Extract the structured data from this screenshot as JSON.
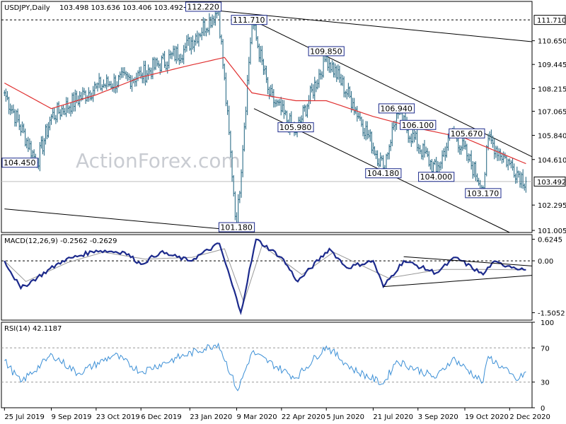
{
  "chart_data": {
    "type": "line",
    "instrument": "USDJPY,Daily",
    "ohlc_header": "103.498 103.636 103.406 103.492",
    "watermark": "ActionForex.com",
    "x_tick_labels": [
      "25 Jul 2019",
      "9 Sep 2019",
      "23 Oct 2019",
      "6 Dec 2019",
      "23 Jan 2020",
      "9 Mar 2020",
      "22 Apr 2020",
      "5 Jun 2020",
      "21 Jul 2020",
      "3 Sep 2020",
      "19 Oct 2020",
      "2 Dec 2020"
    ],
    "price_panel": {
      "y_tick_labels": [
        "111.710",
        "110.650",
        "109.445",
        "108.215",
        "107.065",
        "105.840",
        "104.610",
        "103.492",
        "102.295",
        "101.005"
      ],
      "ylim": [
        100.9,
        112.65
      ],
      "last_price": 103.492,
      "reference_level": 111.71,
      "close_series_keypoints": [
        {
          "x": "2019-07-25",
          "y": 108.0
        },
        {
          "x": "2019-08-26",
          "y": 104.45
        },
        {
          "x": "2019-09-09",
          "y": 106.8
        },
        {
          "x": "2019-10-23",
          "y": 108.3
        },
        {
          "x": "2019-12-06",
          "y": 108.9
        },
        {
          "x": "2020-01-17",
          "y": 110.2
        },
        {
          "x": "2020-02-20",
          "y": 112.22
        },
        {
          "x": "2020-03-09",
          "y": 101.18
        },
        {
          "x": "2020-03-24",
          "y": 111.71
        },
        {
          "x": "2020-04-10",
          "y": 107.9
        },
        {
          "x": "2020-05-06",
          "y": 105.98
        },
        {
          "x": "2020-06-05",
          "y": 109.85
        },
        {
          "x": "2020-07-01",
          "y": 107.5
        },
        {
          "x": "2020-07-31",
          "y": 104.18
        },
        {
          "x": "2020-08-13",
          "y": 106.94
        },
        {
          "x": "2020-09-21",
          "y": 104.0
        },
        {
          "x": "2020-10-07",
          "y": 106.1
        },
        {
          "x": "2020-10-21",
          "y": 104.8
        },
        {
          "x": "2020-11-06",
          "y": 103.17
        },
        {
          "x": "2020-11-11",
          "y": 105.67
        },
        {
          "x": "2020-12-02",
          "y": 104.4
        },
        {
          "x": "2020-12-18",
          "y": 103.492
        }
      ],
      "moving_average_keypoints": [
        {
          "x": "2019-07-25",
          "y": 108.5
        },
        {
          "x": "2019-09-09",
          "y": 107.2
        },
        {
          "x": "2019-10-23",
          "y": 107.9
        },
        {
          "x": "2019-12-06",
          "y": 108.8
        },
        {
          "x": "2020-01-23",
          "y": 109.4
        },
        {
          "x": "2020-02-26",
          "y": 109.8
        },
        {
          "x": "2020-03-24",
          "y": 108.0
        },
        {
          "x": "2020-05-06",
          "y": 107.6
        },
        {
          "x": "2020-06-05",
          "y": 107.6
        },
        {
          "x": "2020-07-21",
          "y": 106.8
        },
        {
          "x": "2020-09-03",
          "y": 106.2
        },
        {
          "x": "2020-10-19",
          "y": 105.7
        },
        {
          "x": "2020-12-18",
          "y": 104.4
        }
      ],
      "trendlines": [
        {
          "from": {
            "x": "2020-01-17",
            "y": 112.35
          },
          "to": {
            "x": "2020-12-24",
            "y": 110.6
          }
        },
        {
          "from": {
            "x": "2020-03-24",
            "y": 111.71
          },
          "to": {
            "x": "2020-12-24",
            "y": 104.75
          }
        },
        {
          "from": {
            "x": "2020-03-26",
            "y": 107.2
          },
          "to": {
            "x": "2020-12-02",
            "y": 100.9
          }
        },
        {
          "from": {
            "x": "2019-07-25",
            "y": 102.1
          },
          "to": {
            "x": "2020-03-22",
            "y": 100.95
          }
        }
      ],
      "annotations": [
        {
          "text": "112.220",
          "x": "2020-02-20",
          "y": 112.22
        },
        {
          "text": "111.710",
          "x": "2020-03-24",
          "y": 111.71
        },
        {
          "text": "109.850",
          "x": "2020-06-05",
          "y": 109.85
        },
        {
          "text": "106.940",
          "x": "2020-08-13",
          "y": 106.94
        },
        {
          "text": "106.100",
          "x": "2020-09-03",
          "y": 106.1
        },
        {
          "text": "105.670",
          "x": "2020-10-21",
          "y": 105.67
        },
        {
          "text": "105.980",
          "x": "2020-05-06",
          "y": 105.98
        },
        {
          "text": "104.180",
          "x": "2020-07-31",
          "y": 104.18
        },
        {
          "text": "104.000",
          "x": "2020-09-21",
          "y": 104.0
        },
        {
          "text": "103.170",
          "x": "2020-11-06",
          "y": 103.17
        },
        {
          "text": "104.450",
          "x": "2019-08-26",
          "y": 104.45
        },
        {
          "text": "101.180",
          "x": "2020-03-09",
          "y": 101.18
        }
      ]
    },
    "macd_panel": {
      "title": "MACD(12,26,9) -0.2562 -0.2629",
      "y_tick_labels": [
        "0.6245",
        "0.00",
        "-1.5052"
      ],
      "ylim": [
        -1.72,
        0.76
      ],
      "keypoints": [
        {
          "x": "2019-07-25",
          "y": 0.0
        },
        {
          "x": "2019-08-10",
          "y": -0.8
        },
        {
          "x": "2019-09-20",
          "y": 0.0
        },
        {
          "x": "2019-10-23",
          "y": 0.3
        },
        {
          "x": "2019-11-20",
          "y": 0.25
        },
        {
          "x": "2019-12-06",
          "y": -0.1
        },
        {
          "x": "2019-12-25",
          "y": 0.25
        },
        {
          "x": "2020-01-23",
          "y": 0.0
        },
        {
          "x": "2020-02-21",
          "y": 0.5
        },
        {
          "x": "2020-03-13",
          "y": -1.5
        },
        {
          "x": "2020-03-28",
          "y": 0.62
        },
        {
          "x": "2020-04-22",
          "y": 0.1
        },
        {
          "x": "2020-05-08",
          "y": -0.6
        },
        {
          "x": "2020-06-08",
          "y": 0.35
        },
        {
          "x": "2020-06-25",
          "y": -0.2
        },
        {
          "x": "2020-07-21",
          "y": 0.0
        },
        {
          "x": "2020-07-31",
          "y": -0.75
        },
        {
          "x": "2020-08-20",
          "y": 0.0
        },
        {
          "x": "2020-09-21",
          "y": -0.35
        },
        {
          "x": "2020-10-10",
          "y": 0.1
        },
        {
          "x": "2020-11-06",
          "y": -0.4
        },
        {
          "x": "2020-11-15",
          "y": -0.05
        },
        {
          "x": "2020-12-02",
          "y": -0.15
        },
        {
          "x": "2020-12-18",
          "y": -0.26
        }
      ],
      "signal_keypoints": [
        {
          "x": "2019-07-25",
          "y": 0.0
        },
        {
          "x": "2019-08-15",
          "y": -0.6
        },
        {
          "x": "2019-09-25",
          "y": -0.05
        },
        {
          "x": "2019-10-30",
          "y": 0.25
        },
        {
          "x": "2019-12-10",
          "y": 0.05
        },
        {
          "x": "2020-01-25",
          "y": 0.1
        },
        {
          "x": "2020-02-26",
          "y": 0.35
        },
        {
          "x": "2020-03-16",
          "y": -1.2
        },
        {
          "x": "2020-04-03",
          "y": 0.45
        },
        {
          "x": "2020-05-12",
          "y": -0.4
        },
        {
          "x": "2020-06-12",
          "y": 0.25
        },
        {
          "x": "2020-08-05",
          "y": -0.5
        },
        {
          "x": "2020-09-25",
          "y": -0.25
        },
        {
          "x": "2020-11-10",
          "y": -0.25
        },
        {
          "x": "2020-12-18",
          "y": -0.26
        }
      ],
      "trendlines": [
        {
          "from": {
            "x": "2020-07-31",
            "y": -0.75
          },
          "to": {
            "x": "2020-12-24",
            "y": -0.42
          }
        },
        {
          "from": {
            "x": "2020-08-20",
            "y": 0.12
          },
          "to": {
            "x": "2020-12-24",
            "y": -0.15
          }
        }
      ]
    },
    "rsi_panel": {
      "title": "RSI(14) 42.1187",
      "y_tick_labels": [
        "100",
        "70",
        "30",
        "0"
      ],
      "ylim": [
        0,
        100
      ],
      "levels": [
        70,
        30
      ],
      "keypoints": [
        {
          "x": "2019-07-25",
          "y": 55
        },
        {
          "x": "2019-08-10",
          "y": 30
        },
        {
          "x": "2019-09-10",
          "y": 62
        },
        {
          "x": "2019-10-05",
          "y": 40
        },
        {
          "x": "2019-11-10",
          "y": 62
        },
        {
          "x": "2019-12-06",
          "y": 42
        },
        {
          "x": "2020-01-10",
          "y": 58
        },
        {
          "x": "2020-02-20",
          "y": 75
        },
        {
          "x": "2020-03-10",
          "y": 20
        },
        {
          "x": "2020-03-24",
          "y": 65
        },
        {
          "x": "2020-05-06",
          "y": 35
        },
        {
          "x": "2020-06-05",
          "y": 72
        },
        {
          "x": "2020-07-01",
          "y": 45
        },
        {
          "x": "2020-07-31",
          "y": 28
        },
        {
          "x": "2020-08-13",
          "y": 55
        },
        {
          "x": "2020-09-21",
          "y": 35
        },
        {
          "x": "2020-10-07",
          "y": 58
        },
        {
          "x": "2020-11-06",
          "y": 30
        },
        {
          "x": "2020-11-11",
          "y": 60
        },
        {
          "x": "2020-12-02",
          "y": 40
        },
        {
          "x": "2020-12-10",
          "y": 32
        },
        {
          "x": "2020-12-18",
          "y": 42.1187
        }
      ]
    },
    "colors": {
      "price": "#2e6e88",
      "ma": "#e03030",
      "macd": "#1c2a8c",
      "signal": "#999999",
      "rsi": "#3b8fd6",
      "grid": "#d8d8d8",
      "frame": "#000000",
      "trendline": "#000000"
    }
  }
}
